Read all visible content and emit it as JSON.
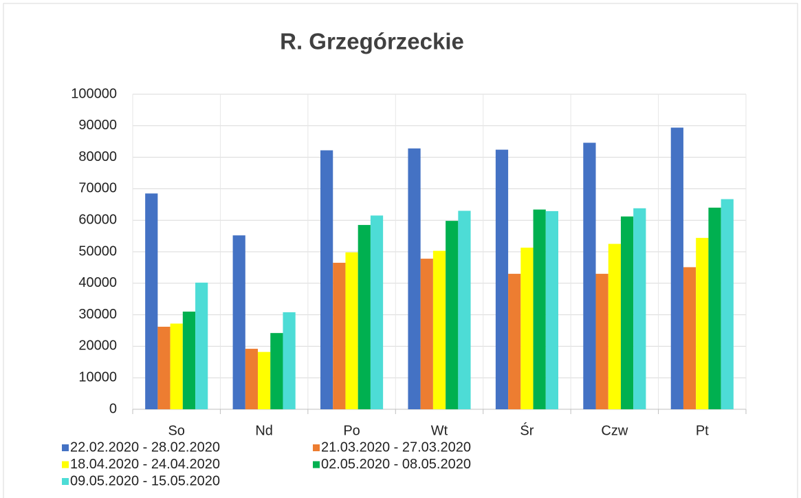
{
  "chart_data": {
    "type": "bar",
    "title": "R. Grzegórzeckie",
    "categories": [
      "So",
      "Nd",
      "Po",
      "Wt",
      "Śr",
      "Czw",
      "Pt"
    ],
    "series": [
      {
        "name": "22.02.2020 - 28.02.2020",
        "color": "#4472c4",
        "values": [
          68500,
          55200,
          82200,
          82800,
          82400,
          84600,
          89400
        ]
      },
      {
        "name": "21.03.2020 - 27.03.2020",
        "color": "#ed7d31",
        "values": [
          26200,
          19200,
          46500,
          47800,
          43000,
          43000,
          45100
        ]
      },
      {
        "name": "18.04.2020 - 24.04.2020",
        "color": "#ffff00",
        "values": [
          27200,
          18200,
          49800,
          50300,
          51300,
          52500,
          54400
        ]
      },
      {
        "name": "02.05.2020 - 08.05.2020",
        "color": "#00b050",
        "values": [
          31000,
          24200,
          58500,
          59800,
          63400,
          61200,
          64000
        ]
      },
      {
        "name": "09.05.2020 - 15.05.2020",
        "color": "#4ddcd6",
        "values": [
          40200,
          30800,
          61500,
          63000,
          62900,
          63800,
          66700
        ]
      }
    ],
    "ylim": [
      0,
      100000
    ],
    "yticks": [
      0,
      10000,
      20000,
      30000,
      40000,
      50000,
      60000,
      70000,
      80000,
      90000,
      100000
    ],
    "grid": true
  }
}
